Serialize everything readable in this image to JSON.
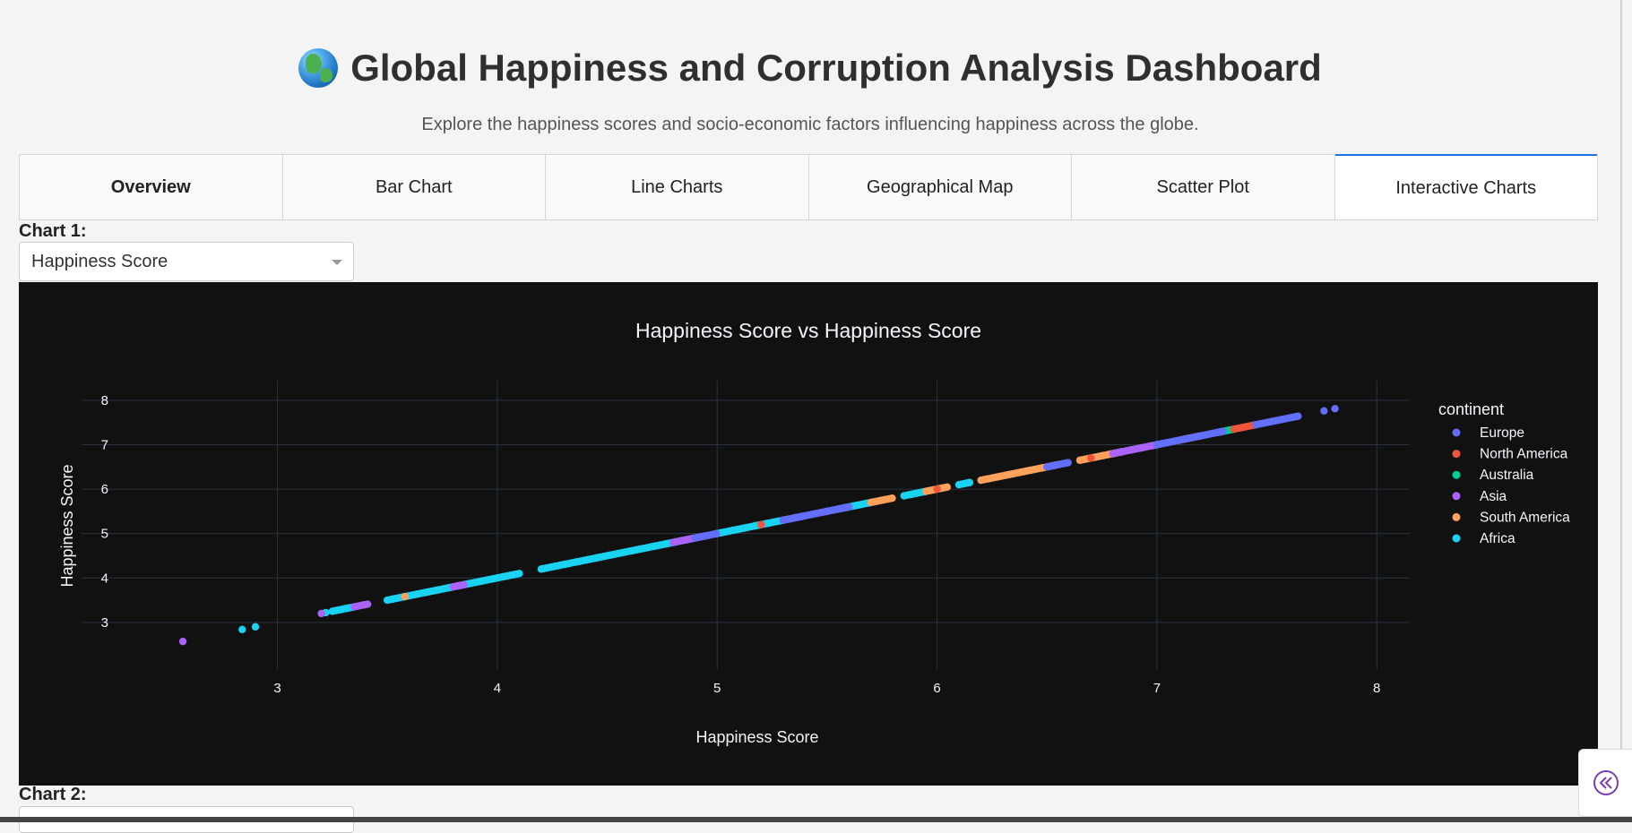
{
  "header": {
    "title": "Global Happiness and Corruption Analysis Dashboard",
    "subtitle": "Explore the happiness scores and socio-economic factors influencing happiness across the globe."
  },
  "tabs": [
    {
      "label": "Overview"
    },
    {
      "label": "Bar Chart"
    },
    {
      "label": "Line Charts"
    },
    {
      "label": "Geographical Map"
    },
    {
      "label": "Scatter Plot"
    },
    {
      "label": "Interactive Charts"
    }
  ],
  "chart1": {
    "label": "Chart 1:",
    "dropdown_value": "Happiness Score"
  },
  "chart2": {
    "label": "Chart 2:"
  },
  "icons": {
    "globe": "globe-icon",
    "collapse": "double-chevron-left-icon"
  },
  "colors": {
    "accent": "#1a73e8",
    "chart_bg": "#111111",
    "Europe": "#636efa",
    "North America": "#ef553b",
    "Australia": "#00cc96",
    "Asia": "#ab63fa",
    "South America": "#ffa15a",
    "Africa": "#19d3f3"
  },
  "chart_data": {
    "type": "scatter",
    "title": "Happiness Score vs Happiness Score",
    "xlabel": "Happiness Score",
    "ylabel": "Happiness Score",
    "xlim": [
      2.15,
      8.15
    ],
    "ylim": [
      2.15,
      8.2
    ],
    "xticks": [
      3,
      4,
      5,
      6,
      7,
      8
    ],
    "yticks": [
      3,
      4,
      5,
      6,
      7,
      8
    ],
    "grid": true,
    "legend_title": "continent",
    "legend_position": "right",
    "series": [
      {
        "name": "Europe",
        "ranges": [
          [
            4.9,
            5.0
          ],
          [
            5.3,
            5.6
          ],
          [
            6.5,
            6.6
          ],
          [
            7.0,
            7.3
          ],
          [
            7.45,
            7.65
          ]
        ],
        "points": [
          7.76,
          7.81
        ]
      },
      {
        "name": "North America",
        "ranges": [
          [
            7.35,
            7.45
          ],
          [
            7.1,
            7.2
          ]
        ],
        "points": [
          6.0,
          6.7,
          5.2
        ]
      },
      {
        "name": "Australia",
        "ranges": [
          [
            7.28,
            7.35
          ]
        ],
        "points": []
      },
      {
        "name": "Asia",
        "ranges": [
          [
            3.35,
            3.42
          ],
          [
            3.8,
            3.85
          ],
          [
            4.8,
            4.95
          ],
          [
            5.3,
            5.4
          ],
          [
            6.8,
            7.0
          ]
        ],
        "points": [
          2.57,
          3.2
        ]
      },
      {
        "name": "South America",
        "ranges": [
          [
            5.7,
            5.8
          ],
          [
            5.95,
            6.05
          ],
          [
            6.2,
            6.55
          ],
          [
            6.65,
            6.85
          ]
        ],
        "points": [
          3.58,
          4.92,
          5.5
        ]
      },
      {
        "name": "Africa",
        "ranges": [
          [
            3.25,
            3.35
          ],
          [
            3.5,
            4.1
          ],
          [
            4.2,
            4.9
          ],
          [
            5.0,
            5.3
          ],
          [
            5.55,
            5.7
          ],
          [
            5.85,
            5.95
          ],
          [
            6.1,
            6.15
          ]
        ],
        "points": [
          2.84,
          2.9,
          3.22,
          7.0
        ]
      }
    ]
  }
}
